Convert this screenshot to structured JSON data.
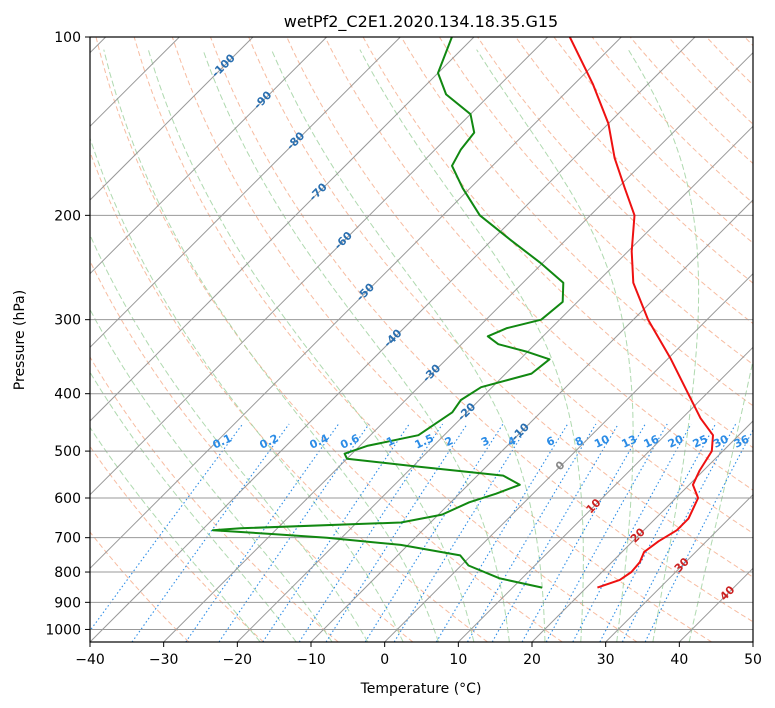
{
  "chart_data": {
    "type": "line",
    "title": "wetPf2_C2E1.2020.134.18.35.G15",
    "xlabel": "Temperature (°C)",
    "ylabel": "Pressure (hPa)",
    "xlim": [
      -40,
      50
    ],
    "ylim": [
      1050,
      100
    ],
    "y_scale": "log",
    "x_ticks": [
      -40,
      -30,
      -20,
      -10,
      0,
      10,
      20,
      30,
      40,
      50
    ],
    "y_ticks": [
      100,
      200,
      300,
      400,
      500,
      600,
      700,
      800,
      900,
      1000
    ],
    "grid": true,
    "colors": {
      "temperature": "#ee1111",
      "dewpoint": "#118811",
      "isotherm": "#999999",
      "dry_adiabat": "#f4a582",
      "moist_adiabat": "#9bcf9b",
      "mixing_ratio": "#2b8ce6",
      "isotherm_label": "#2a6fb0",
      "zero_isotherm_label": "#888888",
      "warm_isotherm_label": "#cc2222",
      "mixing_ratio_label": "#2b8ce6"
    },
    "series": [
      {
        "name": "temperature",
        "points": [
          {
            "p": 850,
            "t": 21.5
          },
          {
            "p": 825,
            "t": 23.5
          },
          {
            "p": 800,
            "t": 24.0
          },
          {
            "p": 770,
            "t": 23.8
          },
          {
            "p": 740,
            "t": 23.0
          },
          {
            "p": 710,
            "t": 23.5
          },
          {
            "p": 680,
            "t": 24.5
          },
          {
            "p": 650,
            "t": 24.5
          },
          {
            "p": 600,
            "t": 23.0
          },
          {
            "p": 570,
            "t": 20.5
          },
          {
            "p": 540,
            "t": 19.5
          },
          {
            "p": 500,
            "t": 18.5
          },
          {
            "p": 470,
            "t": 16.5
          },
          {
            "p": 440,
            "t": 12.5
          },
          {
            "p": 400,
            "t": 7.5
          },
          {
            "p": 350,
            "t": 0.5
          },
          {
            "p": 300,
            "t": -8.0
          },
          {
            "p": 260,
            "t": -15.0
          },
          {
            "p": 230,
            "t": -19.5
          },
          {
            "p": 200,
            "t": -24.0
          },
          {
            "p": 180,
            "t": -29.0
          },
          {
            "p": 160,
            "t": -34.5
          },
          {
            "p": 140,
            "t": -40.0
          },
          {
            "p": 120,
            "t": -47.5
          },
          {
            "p": 100,
            "t": -57.0
          }
        ]
      },
      {
        "name": "dewpoint",
        "points": [
          {
            "p": 850,
            "t": 14.0
          },
          {
            "p": 820,
            "t": 7.0
          },
          {
            "p": 780,
            "t": 1.0
          },
          {
            "p": 750,
            "t": -1.5
          },
          {
            "p": 720,
            "t": -11.0
          },
          {
            "p": 700,
            "t": -22.0
          },
          {
            "p": 690,
            "t": -30.0
          },
          {
            "p": 680,
            "t": -38.5
          },
          {
            "p": 675,
            "t": -35.0
          },
          {
            "p": 660,
            "t": -14.0
          },
          {
            "p": 640,
            "t": -9.5
          },
          {
            "p": 610,
            "t": -7.5
          },
          {
            "p": 590,
            "t": -5.0
          },
          {
            "p": 570,
            "t": -3.0
          },
          {
            "p": 550,
            "t": -6.5
          },
          {
            "p": 530,
            "t": -20.0
          },
          {
            "p": 515,
            "t": -30.0
          },
          {
            "p": 505,
            "t": -31.0
          },
          {
            "p": 490,
            "t": -29.0
          },
          {
            "p": 470,
            "t": -23.5
          },
          {
            "p": 430,
            "t": -22.0
          },
          {
            "p": 410,
            "t": -22.5
          },
          {
            "p": 390,
            "t": -21.5
          },
          {
            "p": 370,
            "t": -16.5
          },
          {
            "p": 350,
            "t": -16.0
          },
          {
            "p": 340,
            "t": -20.0
          },
          {
            "p": 330,
            "t": -25.0
          },
          {
            "p": 320,
            "t": -27.5
          },
          {
            "p": 310,
            "t": -26.0
          },
          {
            "p": 300,
            "t": -22.5
          },
          {
            "p": 280,
            "t": -22.0
          },
          {
            "p": 260,
            "t": -24.5
          },
          {
            "p": 240,
            "t": -30.5
          },
          {
            "p": 220,
            "t": -37.5
          },
          {
            "p": 200,
            "t": -45.0
          },
          {
            "p": 180,
            "t": -51.0
          },
          {
            "p": 165,
            "t": -55.5
          },
          {
            "p": 155,
            "t": -56.5
          },
          {
            "p": 145,
            "t": -57.0
          },
          {
            "p": 135,
            "t": -60.0
          },
          {
            "p": 125,
            "t": -66.0
          },
          {
            "p": 115,
            "t": -70.0
          },
          {
            "p": 100,
            "t": -73.0
          }
        ]
      }
    ],
    "isotherm_labels": [
      {
        "text": "-100",
        "t": -100,
        "p": 112
      },
      {
        "text": "-90",
        "t": -90,
        "p": 128
      },
      {
        "text": "-80",
        "t": -80,
        "p": 150
      },
      {
        "text": "-70",
        "t": -70,
        "p": 183
      },
      {
        "text": "-60",
        "t": -60,
        "p": 221
      },
      {
        "text": "-50",
        "t": -50,
        "p": 270
      },
      {
        "text": "-40",
        "t": -40,
        "p": 323
      },
      {
        "text": "-30",
        "t": -30,
        "p": 370
      },
      {
        "text": "-20",
        "t": -20,
        "p": 430
      },
      {
        "text": "-10",
        "t": -10,
        "p": 465
      },
      {
        "text": "0",
        "t": 0,
        "p": 530
      },
      {
        "text": "10",
        "t": 10,
        "p": 620
      },
      {
        "text": "20",
        "t": 20,
        "p": 695
      },
      {
        "text": "30",
        "t": 30,
        "p": 780
      },
      {
        "text": "40",
        "t": 40,
        "p": 870
      }
    ],
    "mixing_ratio_labels": [
      "0.1",
      "0.2",
      "0.4",
      "0.6",
      "1",
      "1.5",
      "2",
      "3",
      "4",
      "6",
      "8",
      "10",
      "13",
      "16",
      "20",
      "25",
      "30",
      "36"
    ],
    "mixing_ratio_label_pressure": 500
  }
}
